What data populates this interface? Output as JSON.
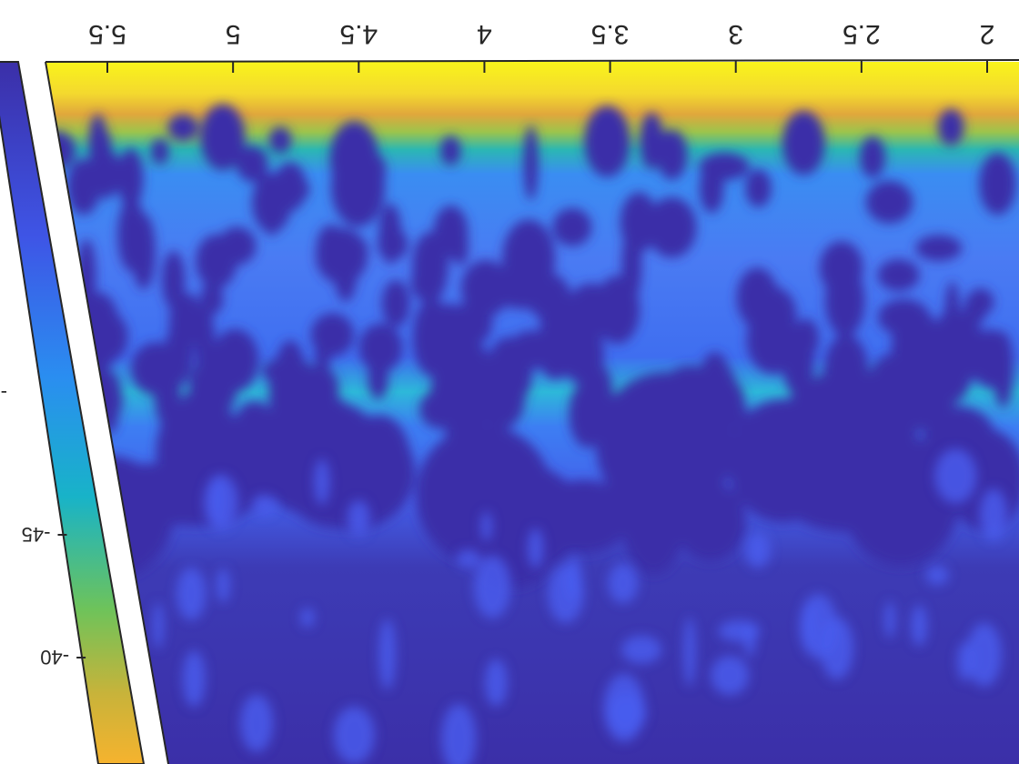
{
  "chart_data": {
    "type": "heatmap",
    "title": "",
    "xlabel": "",
    "ylabel": "",
    "orientation": "image rotated 180 degrees (upside down)",
    "x_ticks": [
      5.5,
      5,
      4.5,
      4,
      3.5,
      3,
      2.5,
      2
    ],
    "x_tick_labels": [
      "5.5",
      "5",
      "4.5",
      "4",
      "3.5",
      "3",
      "2.5",
      "2"
    ],
    "xlim": [
      2,
      5.6
    ],
    "colorbar": {
      "colormap": "parula",
      "ticks": [
        -45,
        -40
      ],
      "tick_labels": [
        "-45",
        "-40"
      ],
      "partial_labels": [
        "-"
      ]
    },
    "description_levels": {
      "top_band": "yellow (high)",
      "middle_band": "light blue to cyan speckled",
      "lower_region": "dark blue (low)"
    },
    "colors": {
      "low": "#3b2fa8",
      "mid_low": "#4a6ef0",
      "mid": "#1fb3d6",
      "mid_high": "#7ec94a",
      "high": "#f8f51c",
      "peak": "#f6d03a"
    }
  }
}
